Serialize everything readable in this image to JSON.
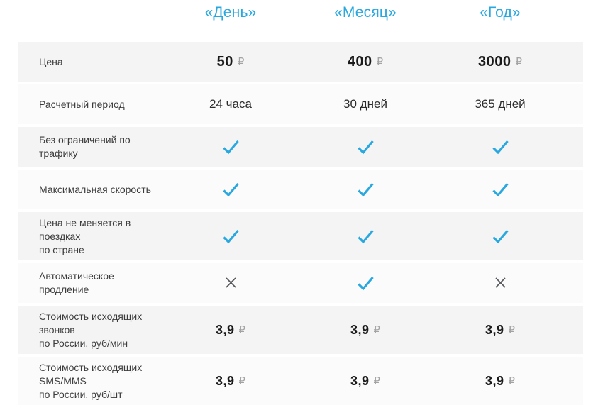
{
  "colors": {
    "accent": "#29a8e0",
    "check": "#29a8e0",
    "cross": "#55565a",
    "row_odd_bg": "#f4f4f4",
    "row_even_bg": "#fbfbfb"
  },
  "table": {
    "column_headers": [
      "«День»",
      "«Месяц»",
      "«Год»"
    ],
    "currency": "₽",
    "rows": [
      {
        "label": "Цена",
        "type": "price",
        "values": [
          "50",
          "400",
          "3000"
        ],
        "currency": "₽"
      },
      {
        "label": "Расчетный период",
        "type": "text",
        "values": [
          "24 часа",
          "30 дней",
          "365 дней"
        ]
      },
      {
        "label": "Без ограничений по трафику",
        "type": "boolean",
        "values": [
          "check",
          "check",
          "check"
        ]
      },
      {
        "label": "Максимальная скорость",
        "type": "boolean",
        "values": [
          "check",
          "check",
          "check"
        ]
      },
      {
        "label": "Цена не меняется в поездках\nпо стране",
        "type": "boolean",
        "values": [
          "check",
          "check",
          "check"
        ]
      },
      {
        "label": "Автоматическое продление",
        "type": "boolean",
        "values": [
          "cross",
          "check",
          "cross"
        ]
      },
      {
        "label": "Стоимость исходящих звонков\nпо России, руб/мин",
        "type": "price",
        "size": "small",
        "values": [
          "3,9",
          "3,9",
          "3,9"
        ],
        "currency": "₽"
      },
      {
        "label": "Стоимость исходящих SMS/MMS\nпо России, руб/шт",
        "type": "price",
        "size": "small",
        "values": [
          "3,9",
          "3,9",
          "3,9"
        ],
        "currency": "₽"
      }
    ]
  }
}
